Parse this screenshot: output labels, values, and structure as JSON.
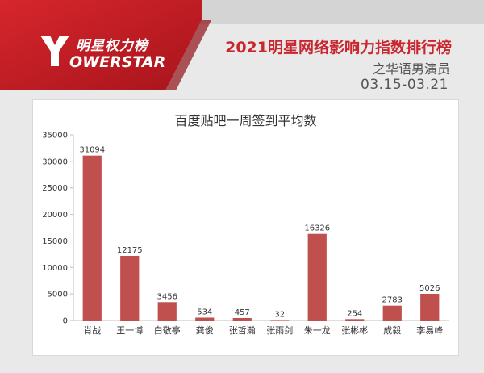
{
  "logo": {
    "cn": "明星权力榜",
    "en": "YOWERSTAR",
    "en_rest": "OWERSTAR"
  },
  "header": {
    "title": "2021明星网络影响力指数排行榜",
    "subtitle": "之华语男演员",
    "date_range": "03.15-03.21"
  },
  "colors": {
    "bar": "#c0504d",
    "brand_red": "#c9262f"
  },
  "chart_data": {
    "type": "bar",
    "title": "百度贴吧一周签到平均数",
    "categories": [
      "肖战",
      "王一博",
      "白敬亭",
      "龚俊",
      "张哲瀚",
      "张雨剑",
      "朱一龙",
      "张彬彬",
      "成毅",
      "李易峰"
    ],
    "values": [
      31094,
      12175,
      3456,
      534,
      457,
      32,
      16326,
      254,
      2783,
      5026
    ],
    "yticks": [
      0,
      5000,
      10000,
      15000,
      20000,
      25000,
      30000,
      35000
    ],
    "ylim": [
      0,
      35000
    ],
    "grid": false,
    "legend": "none"
  }
}
